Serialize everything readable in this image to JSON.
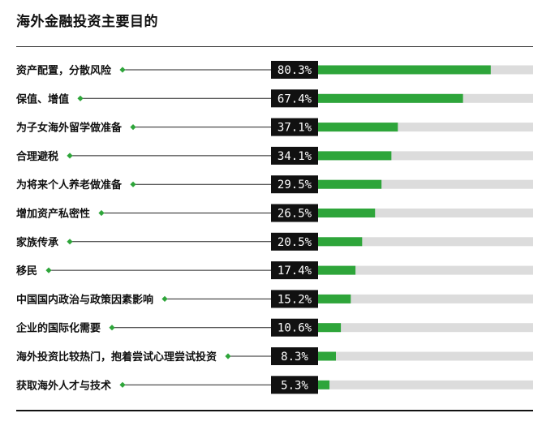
{
  "chart_data": {
    "type": "bar",
    "orientation": "horizontal",
    "title": "海外金融投资主要目的",
    "categories": [
      "资产配置，分散风险",
      "保值、增值",
      "为子女海外留学做准备",
      "合理避税",
      "为将来个人养老做准备",
      "增加资产私密性",
      "家族传承",
      "移民",
      "中国国内政治与政策因素影响",
      "企业的国际化需要",
      "海外投资比较热门，抱着尝试心理尝试投资",
      "获取海外人才与技术"
    ],
    "values": [
      80.3,
      67.4,
      37.1,
      34.1,
      29.5,
      26.5,
      20.5,
      17.4,
      15.2,
      10.6,
      8.3,
      5.3
    ],
    "value_labels": [
      "80.3%",
      "67.4%",
      "37.1%",
      "34.1%",
      "29.5%",
      "26.5%",
      "20.5%",
      "17.4%",
      "15.2%",
      "10.6%",
      "8.3%",
      "5.3%"
    ],
    "xlim": [
      0,
      100
    ],
    "grid": false,
    "legend": "none",
    "colors": {
      "bar": "#2ea53a",
      "track": "#dcdcdc",
      "label_box": "#111111",
      "marker": "#2ea53a",
      "leader_line": "#222222"
    }
  }
}
